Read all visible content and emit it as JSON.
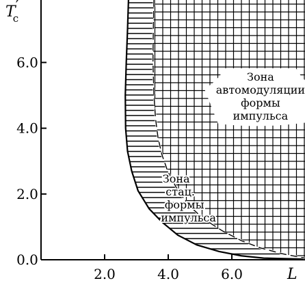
{
  "chart_data": {
    "type": "area",
    "x_label": "L",
    "y_label": "T′c",
    "y_label_main": "T",
    "y_label_prime": "′",
    "y_label_sub": "c",
    "xlim": [
      0,
      8.3
    ],
    "ylim": [
      0,
      7.9
    ],
    "x_ticks": [
      {
        "value": 2.0,
        "label": "2.0"
      },
      {
        "value": 4.0,
        "label": "4.0"
      },
      {
        "value": 6.0,
        "label": "6.0"
      }
    ],
    "y_ticks": [
      {
        "value": 0.0,
        "label": "0.0"
      },
      {
        "value": 2.0,
        "label": "2.0"
      },
      {
        "value": 4.0,
        "label": "4.0"
      },
      {
        "value": 6.0,
        "label": "6.0"
      }
    ],
    "series": [
      {
        "role": "lower_boundary",
        "style": "solid",
        "points": [
          {
            "x": 2.75,
            "y": 7.9
          },
          {
            "x": 2.72,
            "y": 7.0
          },
          {
            "x": 2.68,
            "y": 6.0
          },
          {
            "x": 2.65,
            "y": 5.0
          },
          {
            "x": 2.66,
            "y": 4.0
          },
          {
            "x": 2.72,
            "y": 3.3
          },
          {
            "x": 2.85,
            "y": 2.7
          },
          {
            "x": 3.05,
            "y": 2.1
          },
          {
            "x": 3.4,
            "y": 1.55
          },
          {
            "x": 3.8,
            "y": 1.15
          },
          {
            "x": 4.3,
            "y": 0.75
          },
          {
            "x": 4.9,
            "y": 0.45
          },
          {
            "x": 5.6,
            "y": 0.25
          },
          {
            "x": 6.3,
            "y": 0.12
          },
          {
            "x": 7.0,
            "y": 0.05
          },
          {
            "x": 8.3,
            "y": 0.02
          }
        ]
      },
      {
        "role": "upper_boundary",
        "style": "dashed",
        "points": [
          {
            "x": 3.55,
            "y": 7.9
          },
          {
            "x": 3.53,
            "y": 7.0
          },
          {
            "x": 3.52,
            "y": 6.0
          },
          {
            "x": 3.55,
            "y": 5.0
          },
          {
            "x": 3.6,
            "y": 4.3
          },
          {
            "x": 3.68,
            "y": 3.7
          },
          {
            "x": 3.8,
            "y": 3.2
          },
          {
            "x": 3.98,
            "y": 2.7
          },
          {
            "x": 4.25,
            "y": 2.2
          },
          {
            "x": 4.6,
            "y": 1.7
          },
          {
            "x": 5.1,
            "y": 1.25
          },
          {
            "x": 5.7,
            "y": 0.88
          },
          {
            "x": 6.3,
            "y": 0.58
          },
          {
            "x": 6.9,
            "y": 0.36
          },
          {
            "x": 7.6,
            "y": 0.18
          },
          {
            "x": 8.3,
            "y": 0.05
          }
        ]
      }
    ],
    "regions": [
      {
        "id": "stationary",
        "fill": "horizontal-hatch",
        "label_lines": [
          "Зона",
          "стац.",
          "формы",
          "импульса"
        ]
      },
      {
        "id": "automodulation",
        "fill": "grid-hatch",
        "label_lines": [
          "Зона",
          "автомодуляции",
          "формы",
          "импульса"
        ]
      }
    ],
    "grid": false,
    "legend": "none"
  }
}
